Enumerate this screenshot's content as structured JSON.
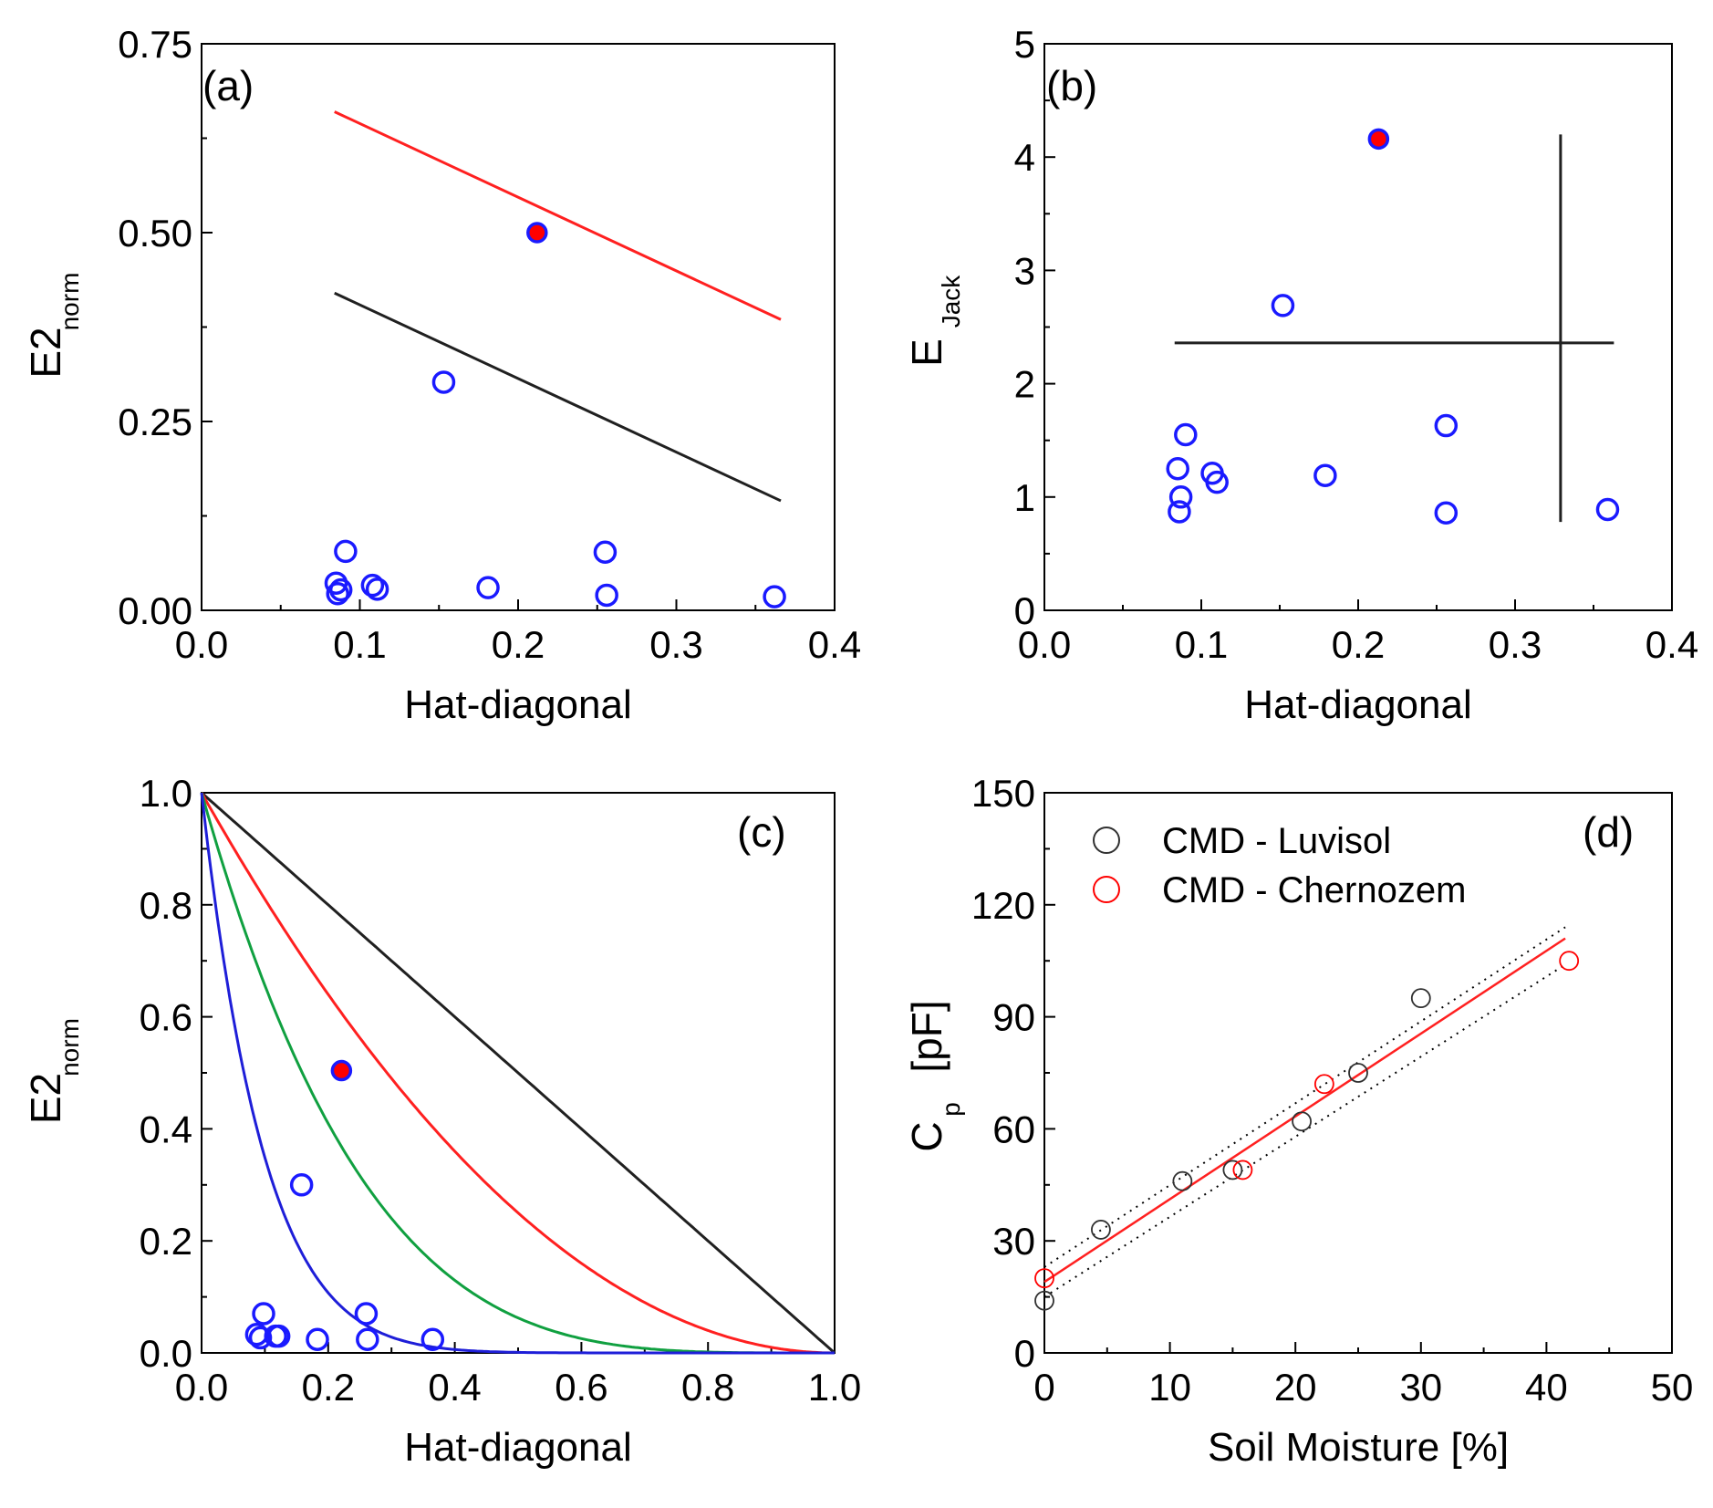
{
  "colors": {
    "axis": "#000000",
    "marker_blue": "#1a1aff",
    "marker_red": "#ff0000",
    "line_red": "#ff2020",
    "line_black": "#202020",
    "line_green": "#10a040",
    "line_blue": "#1e1ed8",
    "marker_black": "#303030"
  },
  "chart_data": [
    {
      "panel": "a",
      "type": "scatter",
      "panel_label": "(a)",
      "xlabel": "Hat-diagonal",
      "ylabel_main": "E2",
      "ylabel_sub": "norm",
      "xlim": [
        0.0,
        0.4
      ],
      "ylim": [
        0.0,
        0.75
      ],
      "xticks": [
        0.0,
        0.1,
        0.2,
        0.3,
        0.4
      ],
      "xtick_labels": [
        "0.0",
        "0.1",
        "0.2",
        "0.3",
        "0.4"
      ],
      "yticks": [
        0.0,
        0.25,
        0.5,
        0.75
      ],
      "ytick_labels": [
        "0.00",
        "0.25",
        "0.50",
        "0.75"
      ],
      "lines": [
        {
          "color": "line_red",
          "x": [
            0.084,
            0.366
          ],
          "y": [
            0.66,
            0.385
          ]
        },
        {
          "color": "line_black",
          "x": [
            0.084,
            0.366
          ],
          "y": [
            0.42,
            0.145
          ]
        }
      ],
      "points_open": {
        "x": [
          0.085,
          0.091,
          0.086,
          0.088,
          0.108,
          0.111,
          0.153,
          0.181,
          0.255,
          0.256,
          0.362
        ],
        "y": [
          0.036,
          0.078,
          0.022,
          0.027,
          0.033,
          0.028,
          0.302,
          0.03,
          0.077,
          0.02,
          0.018
        ]
      },
      "points_highlight": {
        "x": [
          0.212
        ],
        "y": [
          0.5
        ]
      }
    },
    {
      "panel": "b",
      "type": "scatter",
      "panel_label": "(b)",
      "xlabel": "Hat-diagonal",
      "ylabel_main": "E",
      "ylabel_sub": "Jack",
      "xlim": [
        0.0,
        0.4
      ],
      "ylim": [
        0,
        5
      ],
      "xticks": [
        0.0,
        0.1,
        0.2,
        0.3,
        0.4
      ],
      "xtick_labels": [
        "0.0",
        "0.1",
        "0.2",
        "0.3",
        "0.4"
      ],
      "yticks": [
        0,
        1,
        2,
        3,
        4,
        5
      ],
      "ytick_labels": [
        "0",
        "1",
        "2",
        "3",
        "4",
        "5"
      ],
      "lines": [
        {
          "color": "line_black",
          "x": [
            0.083,
            0.363
          ],
          "y": [
            2.36,
            2.36
          ]
        },
        {
          "color": "line_black",
          "x": [
            0.329,
            0.329
          ],
          "y": [
            0.78,
            4.2
          ]
        }
      ],
      "points_open": {
        "x": [
          0.085,
          0.087,
          0.086,
          0.09,
          0.107,
          0.11,
          0.152,
          0.179,
          0.256,
          0.256,
          0.359
        ],
        "y": [
          1.25,
          1.0,
          0.87,
          1.55,
          1.21,
          1.13,
          2.69,
          1.19,
          1.63,
          0.86,
          0.89
        ]
      },
      "points_highlight": {
        "x": [
          0.213
        ],
        "y": [
          4.16
        ]
      }
    },
    {
      "panel": "c",
      "type": "scatter",
      "panel_label": "(c)",
      "xlabel": "Hat-diagonal",
      "ylabel_main": "E2",
      "ylabel_sub": "norm",
      "xlim": [
        0.0,
        1.0
      ],
      "ylim": [
        0.0,
        1.0
      ],
      "xticks": [
        0.0,
        0.2,
        0.4,
        0.6,
        0.8,
        1.0
      ],
      "xtick_labels": [
        "0.0",
        "0.2",
        "0.4",
        "0.6",
        "0.8",
        "1.0"
      ],
      "yticks": [
        0.0,
        0.2,
        0.4,
        0.6,
        0.8,
        1.0
      ],
      "ytick_labels": [
        "0.0",
        "0.2",
        "0.4",
        "0.6",
        "0.8",
        "1.0"
      ],
      "curves": [
        {
          "color": "line_black",
          "exponent": 1
        },
        {
          "color": "line_red",
          "exponent": 2
        },
        {
          "color": "line_green",
          "exponent": 4
        },
        {
          "color": "line_blue",
          "exponent": 10
        }
      ],
      "points_open": {
        "x": [
          0.087,
          0.093,
          0.098,
          0.117,
          0.122,
          0.158,
          0.183,
          0.26,
          0.262,
          0.365
        ],
        "y": [
          0.033,
          0.027,
          0.07,
          0.03,
          0.03,
          0.3,
          0.024,
          0.07,
          0.024,
          0.024
        ]
      },
      "points_highlight": {
        "x": [
          0.221
        ],
        "y": [
          0.504
        ]
      }
    },
    {
      "panel": "d",
      "type": "scatter",
      "panel_label": "(d)",
      "xlabel": "Soil Moisture [%]",
      "ylabel_main": "C",
      "ylabel_sub": "p",
      "ylabel_rest": "[pF]",
      "xlim": [
        0,
        50
      ],
      "ylim": [
        0,
        150
      ],
      "xticks": [
        0,
        10,
        20,
        30,
        40,
        50
      ],
      "xtick_labels": [
        "0",
        "10",
        "20",
        "30",
        "40",
        "50"
      ],
      "yticks": [
        0,
        30,
        60,
        90,
        120,
        150
      ],
      "ytick_labels": [
        "0",
        "30",
        "60",
        "90",
        "120",
        "150"
      ],
      "legend": [
        "CMD - Luvisol",
        "CMD - Chernozem"
      ],
      "legend_position": "top-left",
      "series": [
        {
          "name": "CMD - Luvisol",
          "color": "marker_black",
          "x": [
            0,
            4.5,
            11,
            15,
            20.5,
            25,
            30
          ],
          "y": [
            14,
            33,
            46,
            49,
            62,
            75,
            95
          ]
        },
        {
          "name": "CMD - Chernozem",
          "color": "marker_red",
          "x": [
            0,
            15.8,
            22.3,
            41.8
          ],
          "y": [
            20,
            49,
            72,
            105
          ]
        }
      ],
      "fit_line": {
        "color": "line_red",
        "x": [
          0,
          41.5
        ],
        "y": [
          19,
          111
        ]
      },
      "confidence_upper": {
        "x": [
          0,
          41.5
        ],
        "y": [
          23,
          114
        ]
      },
      "confidence_lower": {
        "x": [
          0,
          41.5
        ],
        "y": [
          15,
          104
        ]
      }
    }
  ]
}
